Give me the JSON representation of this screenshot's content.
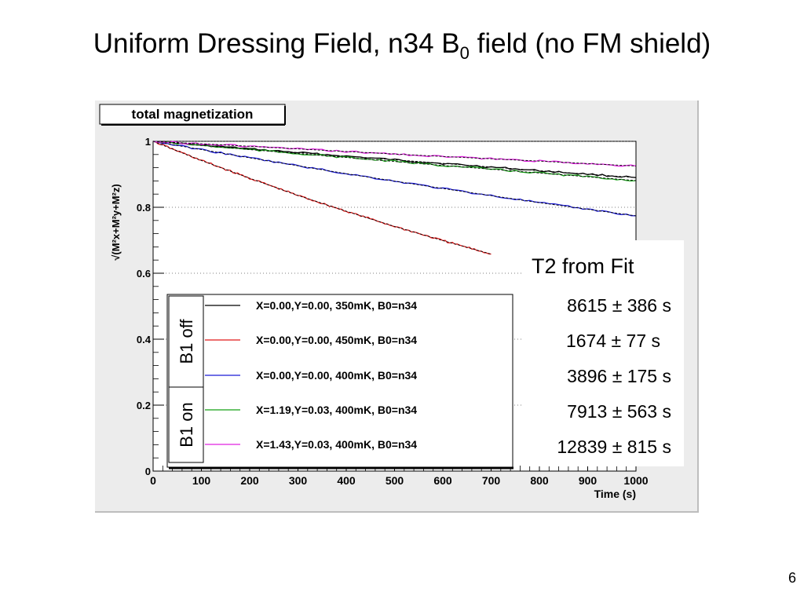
{
  "slide": {
    "title_main": "Uniform Dressing Field, n34 B",
    "title_sub": "0",
    "title_rest": " field (no FM shield)",
    "page_number": "6"
  },
  "colors": {
    "black": "#000000",
    "red": "#e11919",
    "blue": "#1a1ad6",
    "green": "#14a014",
    "magenta": "#e020e0",
    "frame_bg": "#ececec"
  },
  "fit_panel": {
    "heading": "T2 from Fit",
    "rows": [
      "8615 ± 386 s",
      "1674 ± 77 s",
      "3896 ± 175 s",
      "7913 ± 563 s",
      "12839 ± 815 s"
    ]
  },
  "chart_data": {
    "type": "line",
    "title": "total magnetization",
    "xlabel": "Time (s)",
    "ylabel": "√(M²x+M²y+M²z)",
    "xlim": [
      0,
      1000
    ],
    "ylim": [
      0,
      1.0
    ],
    "x_ticks": [
      0,
      100,
      200,
      300,
      400,
      500,
      600,
      700,
      800,
      900,
      1000
    ],
    "x_tick_labels": [
      "0",
      "100",
      "200",
      "300",
      "400",
      "500",
      "600",
      "700",
      "800",
      "900",
      "1000"
    ],
    "y_ticks": [
      0,
      0.2,
      0.4,
      0.6,
      0.8,
      1.0
    ],
    "y_tick_labels": [
      "0",
      "0.2",
      "0.4",
      "0.6",
      "0.8",
      "1"
    ],
    "grid": "horizontal dotted",
    "legend_position": "bottom-left",
    "legend_groups": [
      {
        "label": "B1 off",
        "series": [
          0,
          1,
          2
        ]
      },
      {
        "label": "B1 on",
        "series": [
          3,
          4
        ]
      }
    ],
    "series": [
      {
        "name": "X=0.00,Y=0.00, 350mK, B0=n34",
        "color_key": "black",
        "x": [
          0,
          200,
          400,
          600,
          800,
          1000
        ],
        "values": [
          1.0,
          0.977,
          0.955,
          0.933,
          0.911,
          0.89
        ],
        "fit_T2": 8615
      },
      {
        "name": "X=0.00,Y=0.00, 450mK, B0=n34",
        "color_key": "red",
        "x": [
          0,
          100,
          200,
          300,
          400,
          500,
          600,
          700
        ],
        "values": [
          1.0,
          0.942,
          0.888,
          0.836,
          0.788,
          0.742,
          0.699,
          0.658
        ],
        "fit_T2": 1674
      },
      {
        "name": "X=0.00,Y=0.00, 400mK, B0=n34",
        "color_key": "blue",
        "x": [
          0,
          200,
          400,
          600,
          800,
          1000
        ],
        "values": [
          1.0,
          0.95,
          0.902,
          0.857,
          0.814,
          0.774
        ],
        "fit_T2": 3896
      },
      {
        "name": "X=1.19,Y=0.03, 400mK, B0=n34",
        "color_key": "green",
        "x": [
          0,
          200,
          400,
          600,
          800,
          1000
        ],
        "values": [
          1.0,
          0.975,
          0.951,
          0.927,
          0.904,
          0.881
        ],
        "fit_T2": 7913
      },
      {
        "name": "X=1.43,Y=0.03, 400mK, B0=n34",
        "color_key": "magenta",
        "x": [
          0,
          200,
          400,
          600,
          800,
          1000
        ],
        "values": [
          1.0,
          0.985,
          0.969,
          0.954,
          0.94,
          0.925
        ],
        "fit_T2": 12839
      }
    ]
  }
}
